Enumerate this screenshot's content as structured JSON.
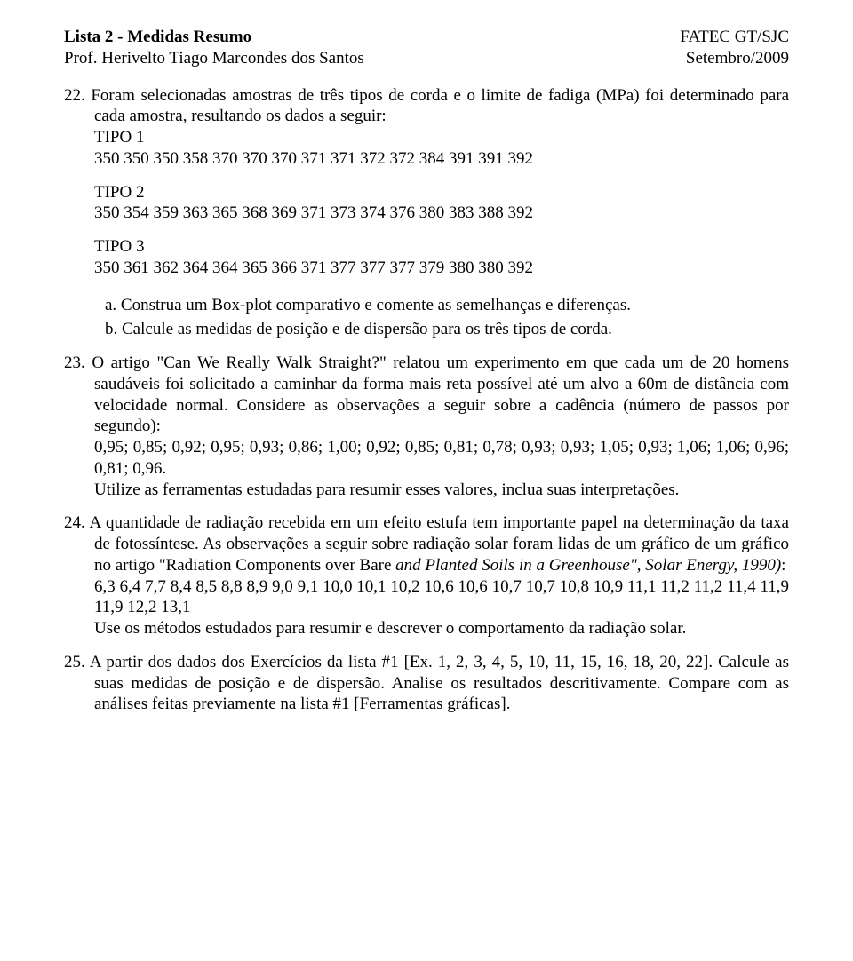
{
  "header": {
    "left1": "Lista 2 - Medidas Resumo",
    "left2": "Prof. Herivelto Tiago Marcondes dos Santos",
    "right1": "FATEC GT/SJC",
    "right2": "Setembro/2009"
  },
  "q22": {
    "num": "22.",
    "intro": "Foram selecionadas amostras de três tipos de corda e o limite de fadiga (MPa) foi determinado para cada amostra, resultando os dados a seguir:",
    "t1_label": "TIPO 1",
    "t1_data": "350 350 350 358 370 370 370 371 371 372 372 384 391 391 392",
    "t2_label": "TIPO 2",
    "t2_data": "350 354 359 363 365 368 369 371 373 374 376 380 383 388 392",
    "t3_label": "TIPO 3",
    "t3_data": "350 361 362 364 364 365 366 371 377 377 377 379 380 380 392",
    "a": "a.  Construa um Box-plot comparativo e comente as semelhanças e diferenças.",
    "b": "b.  Calcule as medidas de posição e de dispersão para os três tipos de corda."
  },
  "q23": {
    "num": "23.",
    "p1a": "O artigo \"Can We Really Walk Straight?\" relatou um experimento em que cada um de 20 homens saudáveis foi solicitado a caminhar da forma mais reta possível até um alvo a 60m de distância com velocidade normal. Considere as observações a seguir sobre a cadência (número de passos por segundo):",
    "p2": "0,95; 0,85; 0,92; 0,95; 0,93; 0,86; 1,00; 0,92; 0,85; 0,81; 0,78; 0,93; 0,93; 1,05; 0,93; 1,06; 1,06; 0,96; 0,81; 0,96.",
    "p3": "Utilize as ferramentas estudadas para resumir esses valores, inclua suas interpretações."
  },
  "q24": {
    "num": "24.",
    "p1a": "A quantidade de radiação recebida em um efeito estufa tem importante papel na determinação da taxa de fotossíntese. As observações a seguir sobre radiação solar foram lidas de um gráfico de um gráfico no artigo \"Radiation Components over Bare ",
    "p1b": "and Planted Soils in a Greenhouse\", Solar Energy, 1990)",
    "p1c": ":",
    "p2": "6,3 6,4 7,7 8,4 8,5 8,8 8,9 9,0 9,1 10,0 10,1 10,2 10,6 10,6 10,7 10,7 10,8 10,9 11,1 11,2 11,2 11,4 11,9 11,9 12,2 13,1",
    "p3": "Use os métodos estudados para resumir e descrever o comportamento da radiação solar."
  },
  "q25": {
    "num": "25.",
    "text": "A partir dos dados dos Exercícios da lista #1 [Ex. 1, 2, 3, 4, 5, 10, 11, 15, 16, 18, 20, 22]. Calcule as suas medidas de posição e de dispersão. Analise os resultados descritivamente. Compare com as análises feitas previamente na lista #1 [Ferramentas gráficas]."
  }
}
